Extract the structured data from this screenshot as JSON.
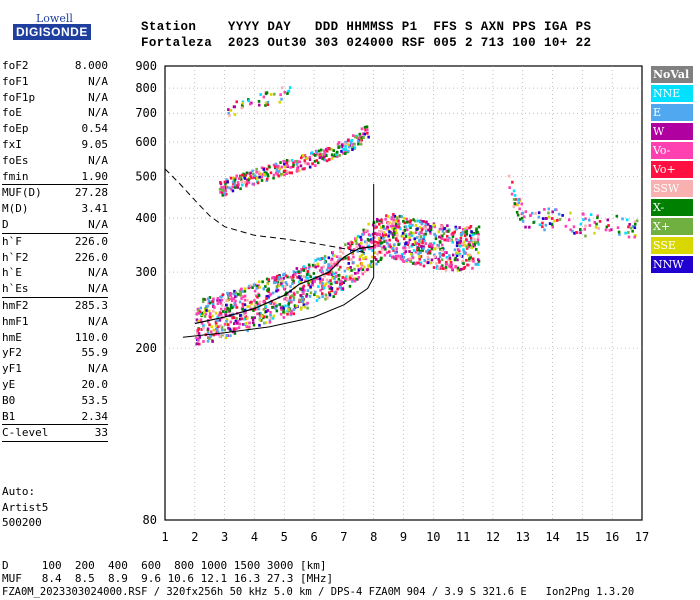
{
  "logo": {
    "top": "Lowell",
    "main": "DIGISONDE"
  },
  "header": {
    "row1": "Station    YYYY DAY   DDD HHMMSS P1  FFS S AXN PPS IGA PS",
    "row2": "Fortaleza  2023 Out30 303 024000 RSF 005 2 713 100 10+ 22"
  },
  "params": [
    {
      "label": "foF2",
      "value": "8.000"
    },
    {
      "label": "foF1",
      "value": "N/A"
    },
    {
      "label": "foF1p",
      "value": "N/A"
    },
    {
      "label": "foE",
      "value": "N/A"
    },
    {
      "label": "foEp",
      "value": "0.54"
    },
    {
      "label": "fxI",
      "value": "9.05"
    },
    {
      "label": "foEs",
      "value": "N/A"
    },
    {
      "label": "fmin",
      "value": "1.90",
      "sep": true
    },
    {
      "label": "MUF(D)",
      "value": "27.28"
    },
    {
      "label": "M(D)",
      "value": "3.41"
    },
    {
      "label": "D",
      "value": "N/A",
      "sep": true
    },
    {
      "label": "h`F",
      "value": "226.0"
    },
    {
      "label": "h`F2",
      "value": "226.0"
    },
    {
      "label": "h`E",
      "value": "N/A"
    },
    {
      "label": "h`Es",
      "value": "N/A",
      "sep": true
    },
    {
      "label": "hmF2",
      "value": "285.3"
    },
    {
      "label": "hmF1",
      "value": "N/A"
    },
    {
      "label": "hmE",
      "value": "110.0"
    },
    {
      "label": "yF2",
      "value": "55.9"
    },
    {
      "label": "yF1",
      "value": "N/A"
    },
    {
      "label": "yE",
      "value": "20.0"
    },
    {
      "label": "B0",
      "value": "53.5"
    },
    {
      "label": "B1",
      "value": "2.34",
      "sep": true
    },
    {
      "label": "C-level",
      "value": "33",
      "sep": true
    }
  ],
  "auto": [
    "Auto:",
    "Artist5",
    "500200"
  ],
  "bottom": {
    "d_row": "D     100  200  400  600  800 1000 1500 3000 [km]",
    "muf_row": "MUF   8.4  8.5  8.9  9.6 10.6 12.1 16.3 27.3 [MHz]",
    "footer": "FZA0M_2023303024000.RSF / 320fx256h 50 kHz 5.0 km / DPS-4 FZA0M 904 / 3.9 S 321.6 E   Ion2Png 1.3.20"
  },
  "legend": [
    {
      "name": "NoVal",
      "color": "#808080"
    },
    {
      "name": "NNE",
      "color": "#00e0ff"
    },
    {
      "name": "E",
      "color": "#50a8f0"
    },
    {
      "name": "W",
      "color": "#b000a0"
    },
    {
      "name": "Vo-",
      "color": "#ff40b0"
    },
    {
      "name": "Vo+",
      "color": "#ff1040"
    },
    {
      "name": "SSW",
      "color": "#f8b0b0"
    },
    {
      "name": "X-",
      "color": "#008000"
    },
    {
      "name": "X+",
      "color": "#70b040"
    },
    {
      "name": "SSE",
      "color": "#d8d800"
    },
    {
      "name": "NNW",
      "color": "#2000d0"
    }
  ],
  "chart_data": {
    "type": "scatter",
    "xlim": [
      1,
      17
    ],
    "ylim": [
      80,
      900
    ],
    "x_ticks": [
      "1",
      "2",
      "3",
      "4",
      "5",
      "6",
      "7",
      "8",
      "9",
      "10",
      "11",
      "12",
      "13",
      "14",
      "15",
      "16",
      "17"
    ],
    "y_ticks": [
      "80",
      "200",
      "300",
      "400",
      "500",
      "600",
      "700",
      "800",
      "900"
    ],
    "grid": true,
    "traces": [
      {
        "name": "F2 trace",
        "points": [
          [
            2.0,
            233
          ],
          [
            2.7,
            238
          ],
          [
            3.5,
            248
          ],
          [
            4.5,
            262
          ],
          [
            5.5,
            278
          ],
          [
            6.5,
            298
          ],
          [
            7.2,
            318
          ],
          [
            7.8,
            350
          ],
          [
            8.5,
            370
          ],
          [
            9.5,
            355
          ],
          [
            10.5,
            345
          ],
          [
            11.5,
            348
          ]
        ]
      },
      {
        "name": "F2 multihop",
        "points": [
          [
            2.8,
            470
          ],
          [
            3.5,
            490
          ],
          [
            4.5,
            515
          ],
          [
            5.5,
            540
          ],
          [
            6.5,
            570
          ],
          [
            7.2,
            600
          ],
          [
            7.8,
            640
          ]
        ]
      },
      {
        "name": "F2 high",
        "points": [
          [
            3.0,
            710
          ],
          [
            4.0,
            750
          ],
          [
            5.2,
            790
          ]
        ]
      },
      {
        "name": "far echoes",
        "points": [
          [
            12.5,
            480
          ],
          [
            13.0,
            400
          ],
          [
            14.0,
            400
          ],
          [
            15.5,
            385
          ],
          [
            16.8,
            385
          ]
        ]
      }
    ],
    "profile_solid": [
      [
        1.6,
        212
      ],
      [
        3,
        217
      ],
      [
        4.5,
        224
      ],
      [
        6,
        236
      ],
      [
        7,
        252
      ],
      [
        7.8,
        275
      ],
      [
        8,
        292
      ]
    ],
    "profile_dashed": [
      [
        1.0,
        520
      ],
      [
        1.5,
        480
      ],
      [
        2,
        440
      ],
      [
        2.5,
        405
      ],
      [
        3,
        382
      ],
      [
        4,
        365
      ],
      [
        5,
        358
      ],
      [
        6,
        350
      ],
      [
        7,
        340
      ],
      [
        7.8,
        332
      ]
    ],
    "profile_trace": [
      [
        2.0,
        228
      ],
      [
        3,
        236
      ],
      [
        4,
        247
      ],
      [
        5,
        265
      ],
      [
        5.5,
        281
      ],
      [
        6,
        290
      ],
      [
        6.5,
        300
      ],
      [
        7,
        325
      ],
      [
        7.5,
        340
      ],
      [
        8,
        344
      ]
    ]
  }
}
